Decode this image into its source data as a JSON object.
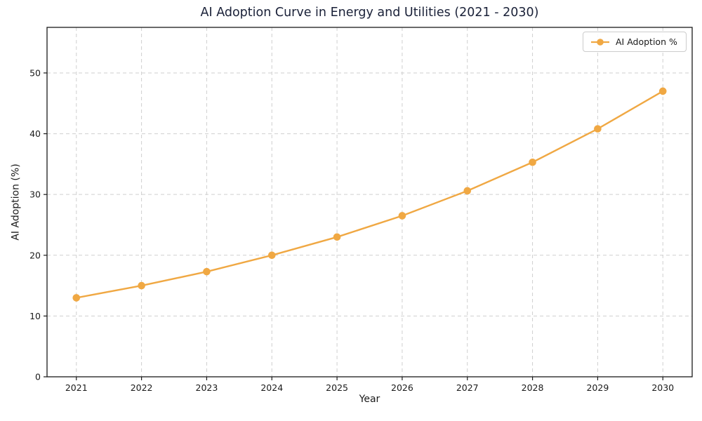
{
  "chart_data": {
    "type": "line",
    "title": "AI Adoption Curve in Energy and Utilities (2021 - 2030)",
    "xlabel": "Year",
    "ylabel": "AI Adoption (%)",
    "x": [
      2021,
      2022,
      2023,
      2024,
      2025,
      2026,
      2027,
      2028,
      2029,
      2030
    ],
    "series": [
      {
        "name": "AI Adoption %",
        "values": [
          13.0,
          15.0,
          17.3,
          20.0,
          23.0,
          26.5,
          30.6,
          35.3,
          40.8,
          47.0
        ]
      }
    ],
    "yticks": [
      0,
      10,
      20,
      30,
      40,
      50
    ],
    "xlim": [
      2020.55,
      2030.45
    ],
    "ylim": [
      0,
      57.5
    ],
    "grid": true,
    "grid_style": "dashed",
    "marker": "circle",
    "legend": {
      "position": "upper right",
      "entries": [
        "AI Adoption %"
      ]
    },
    "colors": {
      "line": "#F0A843",
      "grid": "#CFCFCF",
      "axis": "#1A1A1A",
      "title": "#1A2138",
      "background": "#FFFFFF"
    }
  }
}
